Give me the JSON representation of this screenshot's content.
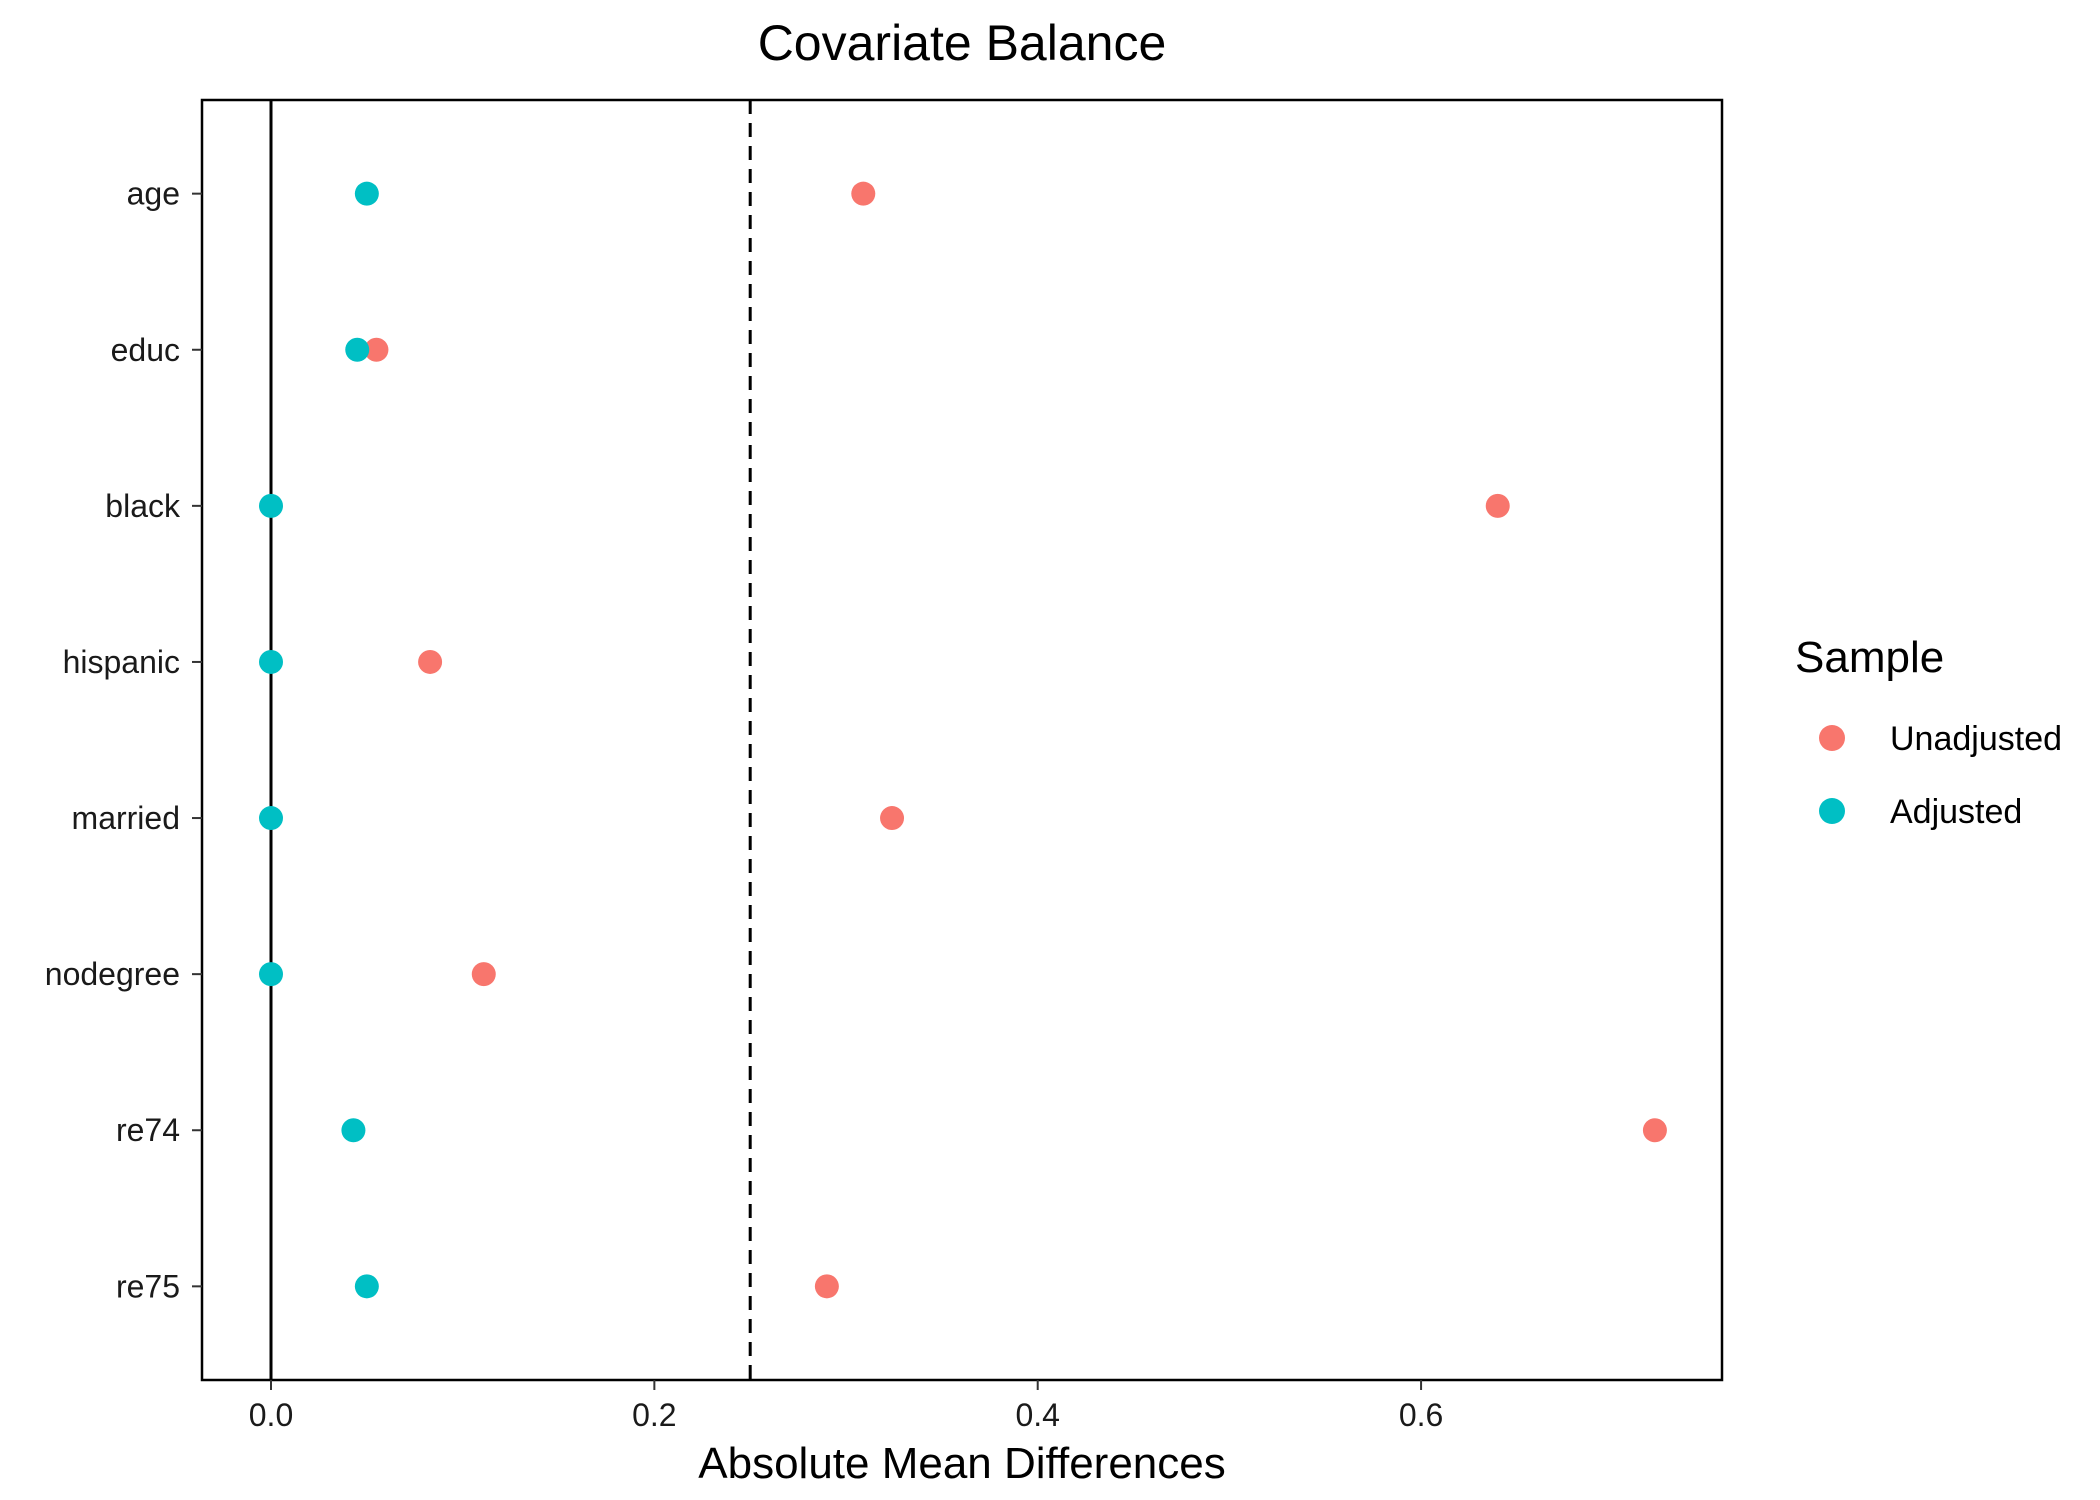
{
  "chart_data": {
    "type": "scatter",
    "title": "Covariate Balance",
    "xlabel": "Absolute Mean Differences",
    "ylabel": "",
    "xlim": [
      -0.036,
      0.757
    ],
    "x_ticks": [
      0.0,
      0.2,
      0.4,
      0.6
    ],
    "x_tick_labels": [
      "0.0",
      "0.2",
      "0.4",
      "0.6"
    ],
    "categories": [
      "age",
      "educ",
      "black",
      "hispanic",
      "married",
      "nodegree",
      "re74",
      "re75"
    ],
    "reference_lines": [
      {
        "x": 0,
        "style": "solid"
      },
      {
        "x": 0.25,
        "style": "dashed"
      }
    ],
    "grid": false,
    "legend_title": "Sample",
    "legend_position": "right",
    "series": [
      {
        "name": "Unadjusted",
        "color": "#F8766D",
        "values": [
          0.309,
          0.055,
          0.64,
          0.083,
          0.324,
          0.111,
          0.722,
          0.29
        ]
      },
      {
        "name": "Adjusted",
        "color": "#00BFC4",
        "values": [
          0.05,
          0.045,
          0.0,
          0.0,
          0.0,
          0.0,
          0.043,
          0.05
        ]
      }
    ]
  }
}
